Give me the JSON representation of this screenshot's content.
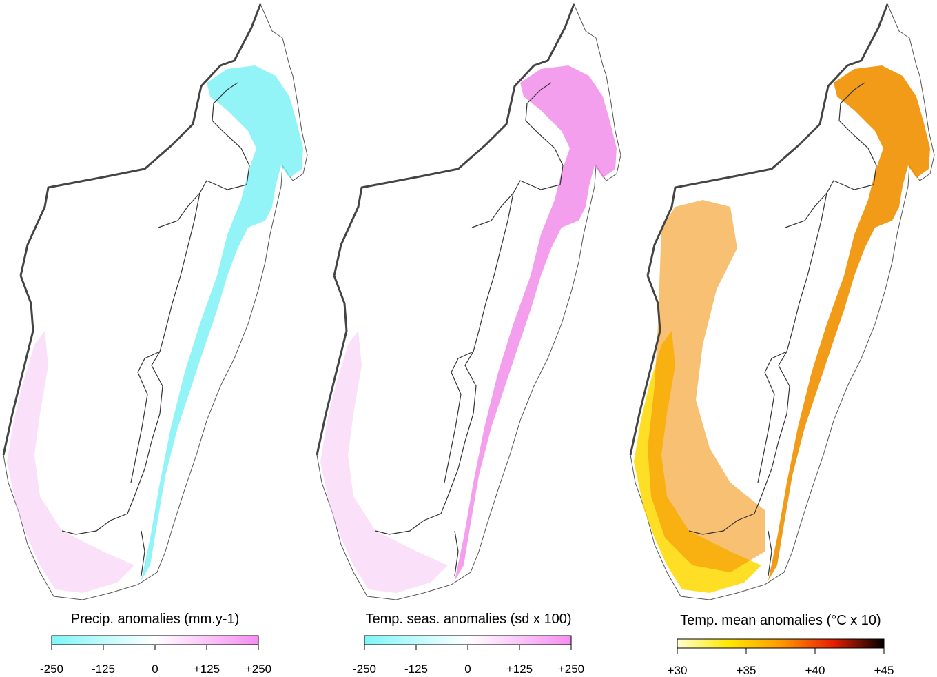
{
  "panels": [
    {
      "id": "precip",
      "legend_title": "Precip. anomalies (mm.y-1)",
      "ticks": [
        "-250",
        "-125",
        "0",
        "+125",
        "+250"
      ],
      "scale_colors": [
        "#7ff5f7",
        "#ffffff",
        "#f58df0"
      ],
      "dominant_color": "#6ff0f5",
      "secondary_color": "#f6c6f3"
    },
    {
      "id": "temp-seas",
      "legend_title": "Temp. seas. anomalies (sd x 100)",
      "ticks": [
        "-250",
        "-125",
        "0",
        "+125",
        "+250"
      ],
      "scale_colors": [
        "#7ff5f7",
        "#ffffff",
        "#f58df0"
      ],
      "dominant_color": "#f07ee8",
      "secondary_color": "#f6c6f3"
    },
    {
      "id": "temp-mean",
      "legend_title": "Temp. mean anomalies (°C x 10)",
      "ticks": [
        "+30",
        "+35",
        "+40",
        "+45"
      ],
      "scale_colors": [
        "#ffffd0",
        "#ffe800",
        "#ff9a00",
        "#e82000",
        "#000000"
      ],
      "dominant_color": "#f09000",
      "secondary_color": "#ffd800"
    }
  ],
  "colors": {
    "coast": "#444444",
    "boundary": "#333333",
    "background": "#ffffff"
  }
}
